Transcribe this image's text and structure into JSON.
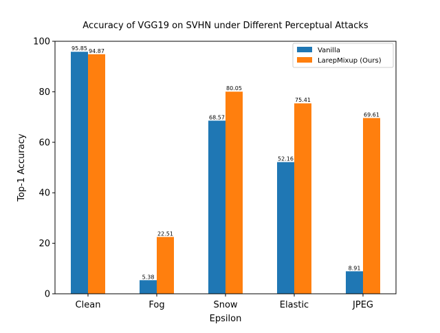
{
  "chart_data": {
    "type": "bar",
    "title": "Accuracy of VGG19 on SVHN under Different Perceptual Attacks",
    "xlabel": "Epsilon",
    "ylabel": "Top-1 Accuracy",
    "categories": [
      "Clean",
      "Fog",
      "Snow",
      "Elastic",
      "JPEG"
    ],
    "ylim": [
      0,
      100
    ],
    "yticks": [
      0,
      20,
      40,
      60,
      80,
      100
    ],
    "grid": false,
    "legend_position": "top-right",
    "series": [
      {
        "name": "Vanilla",
        "color": "#1f77b4",
        "values": [
          95.85,
          5.38,
          68.57,
          52.16,
          8.91
        ],
        "labels": [
          "95.85",
          "5.38",
          "68.57",
          "52.16",
          "8.91"
        ]
      },
      {
        "name": "LarepMixup (Ours)",
        "color": "#ff7f0e",
        "values": [
          94.87,
          22.51,
          80.05,
          75.41,
          69.61
        ],
        "labels": [
          "94.87",
          "22.51",
          "80.05",
          "75.41",
          "69.61"
        ]
      }
    ]
  }
}
